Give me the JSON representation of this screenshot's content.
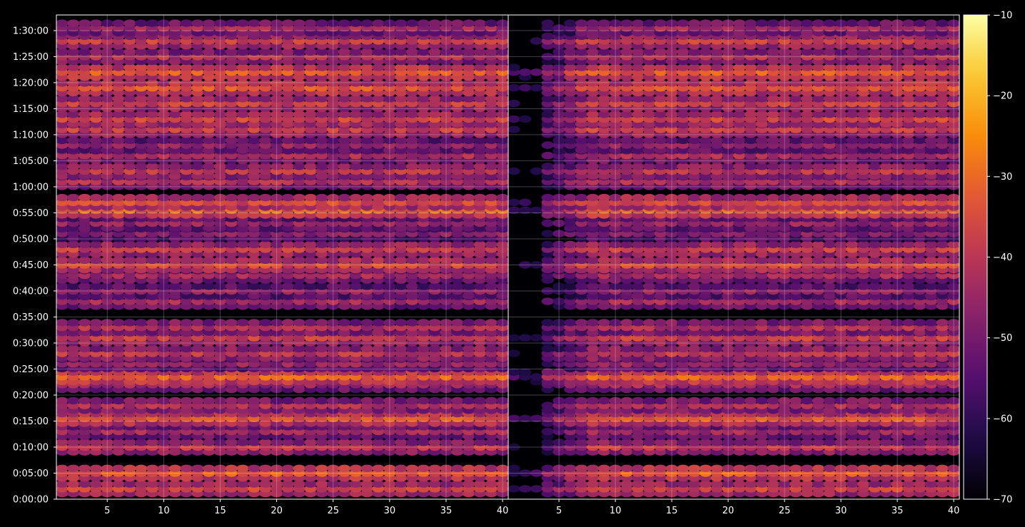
{
  "chart_data": {
    "type": "heatmap",
    "title": "",
    "xlabel": "",
    "ylabel": "",
    "panels": [
      {
        "name": "",
        "xlim": [
          1,
          40
        ],
        "x_ticks": [
          "5",
          "10",
          "15",
          "20",
          "25",
          "30",
          "35",
          "40"
        ]
      },
      {
        "name": "",
        "xlim": [
          1,
          40
        ],
        "x_ticks": [
          "5",
          "10",
          "15",
          "20",
          "25",
          "30",
          "35",
          "40"
        ]
      }
    ],
    "ylim_seconds": [
      0,
      5580
    ],
    "y_ticks": [
      {
        "seconds": 0,
        "label": "0:00:00"
      },
      {
        "seconds": 300,
        "label": "0:05:00"
      },
      {
        "seconds": 600,
        "label": "0:10:00"
      },
      {
        "seconds": 900,
        "label": "0:15:00"
      },
      {
        "seconds": 1200,
        "label": "0:20:00"
      },
      {
        "seconds": 1500,
        "label": "0:25:00"
      },
      {
        "seconds": 1800,
        "label": "0:30:00"
      },
      {
        "seconds": 2100,
        "label": "0:35:00"
      },
      {
        "seconds": 2400,
        "label": "0:40:00"
      },
      {
        "seconds": 2700,
        "label": "0:45:00"
      },
      {
        "seconds": 3000,
        "label": "0:50:00"
      },
      {
        "seconds": 3300,
        "label": "0:55:00"
      },
      {
        "seconds": 3600,
        "label": "1:00:00"
      },
      {
        "seconds": 3900,
        "label": "1:05:00"
      },
      {
        "seconds": 4200,
        "label": "1:10:00"
      },
      {
        "seconds": 4500,
        "label": "1:15:00"
      },
      {
        "seconds": 4800,
        "label": "1:20:00"
      },
      {
        "seconds": 5100,
        "label": "1:25:00"
      },
      {
        "seconds": 5400,
        "label": "1:30:00"
      }
    ],
    "colorbar": {
      "colormap": "inferno",
      "vmin": -70,
      "vmax": -10,
      "ticks": [
        {
          "value": -10,
          "label": "−10"
        },
        {
          "value": -20,
          "label": "−20"
        },
        {
          "value": -30,
          "label": "−30"
        },
        {
          "value": -40,
          "label": "−40"
        },
        {
          "value": -50,
          "label": "−50"
        },
        {
          "value": -60,
          "label": "−60"
        },
        {
          "value": -70,
          "label": "−70"
        }
      ]
    },
    "band_profile": [
      {
        "t": 120,
        "level": -37
      },
      {
        "t": 300,
        "level": -33
      },
      {
        "t": 600,
        "level": -40
      },
      {
        "t": 780,
        "level": -44
      },
      {
        "t": 930,
        "level": -34
      },
      {
        "t": 1080,
        "level": -42
      },
      {
        "t": 1320,
        "level": -44
      },
      {
        "t": 1410,
        "level": -32
      },
      {
        "t": 1560,
        "level": -46
      },
      {
        "t": 1680,
        "level": -40
      },
      {
        "t": 1860,
        "level": -38
      },
      {
        "t": 1980,
        "level": -42
      },
      {
        "t": 2280,
        "level": -44
      },
      {
        "t": 2400,
        "level": -47
      },
      {
        "t": 2580,
        "level": -44
      },
      {
        "t": 2700,
        "level": -36
      },
      {
        "t": 2880,
        "level": -38
      },
      {
        "t": 3060,
        "level": -48
      },
      {
        "t": 3180,
        "level": -46
      },
      {
        "t": 3330,
        "level": -32
      },
      {
        "t": 3420,
        "level": -36
      },
      {
        "t": 3660,
        "level": -42
      },
      {
        "t": 3780,
        "level": -40
      },
      {
        "t": 3960,
        "level": -43
      },
      {
        "t": 4080,
        "level": -46
      },
      {
        "t": 4260,
        "level": -38
      },
      {
        "t": 4380,
        "level": -37
      },
      {
        "t": 4560,
        "level": -38
      },
      {
        "t": 4740,
        "level": -34
      },
      {
        "t": 4920,
        "level": -33
      },
      {
        "t": 5100,
        "level": -42
      },
      {
        "t": 5280,
        "level": -38
      },
      {
        "t": 5430,
        "level": -44
      }
    ],
    "grid": true,
    "legend": "colorbar-right"
  }
}
